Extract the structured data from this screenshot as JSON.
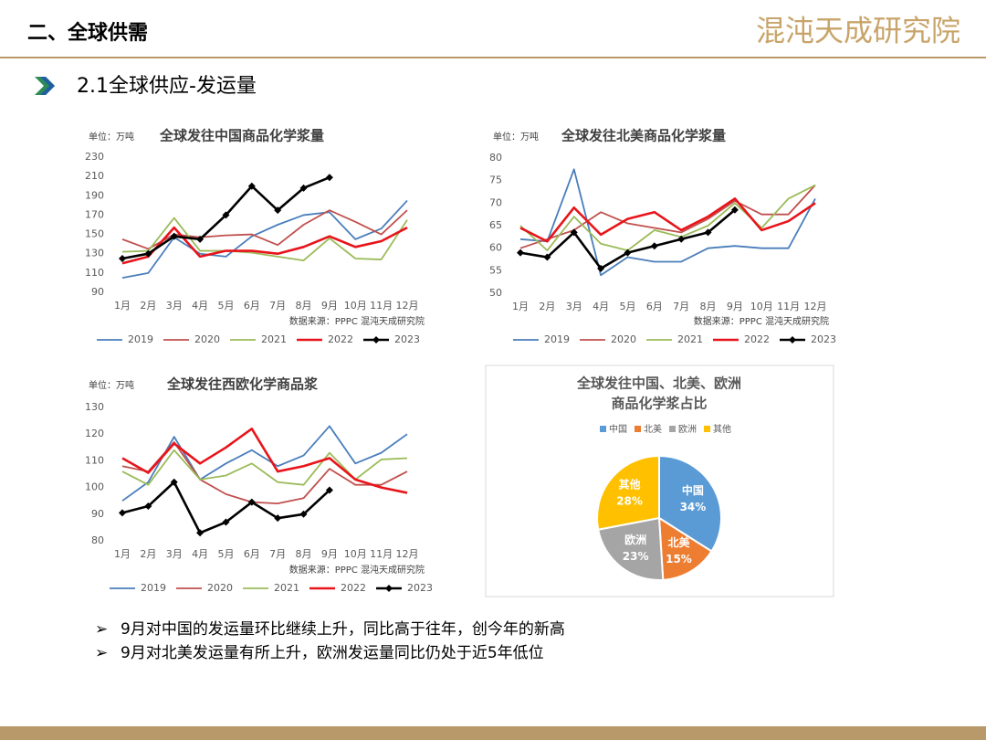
{
  "header": {
    "section": "二、全球供需",
    "logo": "混沌天成研究院",
    "subtitle": "2.1全球供应-发运量"
  },
  "chart_data": [
    {
      "type": "line",
      "unit": "单位：万吨",
      "title": "全球发往中国商品化学浆量",
      "source": "数据来源：PPPC 混沌天成研究院",
      "categories": [
        "1月",
        "2月",
        "3月",
        "4月",
        "5月",
        "6月",
        "7月",
        "8月",
        "9月",
        "10月",
        "11月",
        "12月"
      ],
      "ylim": [
        90,
        230
      ],
      "yticks": [
        90,
        110,
        130,
        150,
        170,
        190,
        210,
        230
      ],
      "grid": false,
      "series": [
        {
          "name": "2019",
          "color": "#4a7ebb",
          "values": [
            105,
            110,
            147,
            130,
            127,
            148,
            160,
            170,
            173,
            145,
            156,
            185
          ]
        },
        {
          "name": "2020",
          "color": "#c0504d",
          "values": [
            145,
            135,
            150,
            147,
            149,
            150,
            139,
            160,
            175,
            163,
            150,
            175
          ]
        },
        {
          "name": "2021",
          "color": "#9bbb59",
          "values": [
            132,
            133,
            167,
            133,
            133,
            131,
            127,
            123,
            146,
            125,
            124,
            165
          ]
        },
        {
          "name": "2022",
          "color": "#e8141b",
          "values": [
            120,
            127,
            157,
            127,
            133,
            133,
            130,
            137,
            148,
            137,
            143,
            157
          ]
        },
        {
          "name": "2023",
          "color": "#000000",
          "marker": "diamond",
          "values": [
            125,
            130,
            148,
            145,
            170,
            200,
            175,
            198,
            209,
            null,
            null,
            null
          ]
        }
      ]
    },
    {
      "type": "line",
      "unit": "单位：万吨",
      "title": "全球发往北美商品化学浆量",
      "source": "数据来源：PPPC 混沌天成研究院",
      "categories": [
        "1月",
        "2月",
        "3月",
        "4月",
        "5月",
        "6月",
        "7月",
        "8月",
        "9月",
        "10月",
        "11月",
        "12月"
      ],
      "ylim": [
        50,
        80
      ],
      "yticks": [
        50,
        55,
        60,
        65,
        70,
        75,
        80
      ],
      "grid": false,
      "series": [
        {
          "name": "2019",
          "color": "#4a7ebb",
          "values": [
            62,
            61.5,
            77.5,
            54,
            58,
            57,
            57,
            60,
            60.5,
            60,
            60,
            71
          ]
        },
        {
          "name": "2020",
          "color": "#c0504d",
          "values": [
            60,
            62,
            64,
            68,
            65.5,
            64.5,
            63.5,
            66.5,
            70.5,
            67.5,
            67.5,
            74
          ]
        },
        {
          "name": "2021",
          "color": "#9bbb59",
          "values": [
            65,
            59.5,
            67,
            61,
            59.5,
            64,
            62.5,
            65,
            70,
            64.5,
            71,
            74
          ]
        },
        {
          "name": "2022",
          "color": "#e8141b",
          "values": [
            64.5,
            61.5,
            69,
            63,
            66.5,
            68,
            64,
            67,
            71,
            64,
            66,
            70
          ]
        },
        {
          "name": "2023",
          "color": "#000000",
          "marker": "diamond",
          "values": [
            59,
            58,
            63.5,
            55.5,
            59,
            60.5,
            62,
            63.5,
            68.5,
            null,
            null,
            null
          ]
        }
      ]
    },
    {
      "type": "line",
      "unit": "单位：万吨",
      "title": "全球发往西欧化学商品浆",
      "source": "数据来源：PPPC 混沌天成研究院",
      "categories": [
        "1月",
        "2月",
        "3月",
        "4月",
        "5月",
        "6月",
        "7月",
        "8月",
        "9月",
        "10月",
        "11月",
        "12月"
      ],
      "ylim": [
        80,
        130
      ],
      "yticks": [
        80,
        90,
        100,
        110,
        120,
        130
      ],
      "grid": false,
      "series": [
        {
          "name": "2019",
          "color": "#4a7ebb",
          "values": [
            95,
            102,
            119,
            103,
            109,
            114,
            108,
            112,
            123,
            109,
            113,
            120
          ]
        },
        {
          "name": "2020",
          "color": "#c0504d",
          "values": [
            108,
            106,
            117,
            103,
            97.5,
            94.5,
            94,
            96,
            107,
            101,
            101,
            106
          ]
        },
        {
          "name": "2021",
          "color": "#9bbb59",
          "values": [
            106,
            101,
            114,
            103,
            104.5,
            109,
            102,
            101,
            113,
            103,
            110.5,
            111
          ]
        },
        {
          "name": "2022",
          "color": "#e8141b",
          "values": [
            111,
            105.5,
            116.5,
            109,
            115,
            122,
            106,
            108,
            111,
            103,
            100,
            98
          ]
        },
        {
          "name": "2023",
          "color": "#000000",
          "marker": "diamond",
          "values": [
            90.5,
            93,
            102,
            83,
            87,
            94.5,
            88.5,
            90,
            99,
            null,
            null,
            null
          ]
        }
      ]
    },
    {
      "type": "pie",
      "title": [
        "全球发往中国、北美、欧洲",
        "商品化学浆占比"
      ],
      "categories": [
        "中国",
        "北美",
        "欧洲",
        "其他"
      ],
      "values": [
        34,
        15,
        23,
        28
      ],
      "value_labels": [
        "34%",
        "15%",
        "23%",
        "28%"
      ],
      "colors": [
        "#5b9bd5",
        "#ed7d31",
        "#a5a5a5",
        "#ffc000"
      ]
    }
  ],
  "bullets": [
    "9月对中国的发运量环比继续上升，同比高于往年，创今年的新高",
    "9月对北美发运量有所上升，欧洲发运量同比仍处于近5年低位"
  ]
}
